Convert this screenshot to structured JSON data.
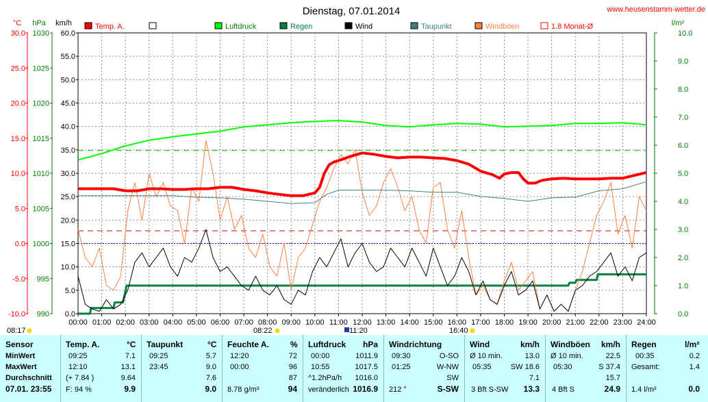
{
  "title": "Dienstag, 07.01.2014",
  "website": "www.heusenstamm-wetter.de",
  "units": {
    "temp": "°C",
    "pressure": "hPa",
    "wind": "km/h",
    "rain": "l/m²"
  },
  "legend": [
    {
      "label": "Temp. A.",
      "color": "#ff0000"
    },
    {
      "label": "",
      "color": "#ffffff"
    },
    {
      "label": "Luftdruck",
      "color": "#00ff00"
    },
    {
      "label": "Regen",
      "color": "#008040"
    },
    {
      "label": "Wind",
      "color": "#000000"
    },
    {
      "label": "Taupunkt",
      "color": "#408080"
    },
    {
      "label": "Windböen",
      "color": "#ff8040"
    },
    {
      "label": "1.8 Monat-Ø",
      "color": "#ff0000"
    }
  ],
  "markers": {
    "sunrise": "08:22",
    "sunset": "16:40",
    "noon": "11:20",
    "left_time": "08:17"
  },
  "chart_data": {
    "type": "line",
    "x_ticks": [
      "00:00",
      "01:00",
      "02:00",
      "03:00",
      "04:00",
      "05:00",
      "06:00",
      "07:00",
      "08:00",
      "09:00",
      "10:00",
      "11:00",
      "12:00",
      "13:00",
      "14:00",
      "15:00",
      "16:00",
      "17:00",
      "18:00",
      "19:00",
      "20:00",
      "21:00",
      "22:00",
      "23:00",
      "24:00"
    ],
    "axes": {
      "temp": {
        "label": "°C",
        "min": -10,
        "max": 30,
        "ticks": [
          "30.0",
          "25.0",
          "20.0",
          "15.0",
          "10.0",
          "5.0",
          "0.0",
          "-5.0",
          "-10.0"
        ]
      },
      "pressure": {
        "label": "hPa",
        "min": 990,
        "max": 1030,
        "ticks": [
          "1030",
          "1025",
          "1020",
          "1015",
          "1010",
          "1005",
          "1000",
          "995",
          "990"
        ]
      },
      "wind": {
        "label": "km/h",
        "min": 0,
        "max": 60,
        "ticks": [
          "60.0",
          "55.0",
          "50.0",
          "45.0",
          "40.0",
          "35.0",
          "30.0",
          "25.0",
          "20.0",
          "15.0",
          "10.0",
          "5.0",
          "0.0"
        ]
      },
      "rain": {
        "label": "l/m²",
        "min": 0,
        "max": 10,
        "ticks": [
          "10.0",
          "9.0",
          "8.0",
          "7.0",
          "6.0",
          "5.0",
          "4.0",
          "3.0",
          "2.0",
          "1.0",
          "0.0"
        ]
      }
    },
    "reference_lines": [
      {
        "name": "monthly-avg-temp",
        "axis": "temp",
        "value": 1.8,
        "color": "#cc0000"
      },
      {
        "name": "pressure-reference",
        "axis": "pressure",
        "value": 1013.25,
        "color": "#00cc00"
      },
      {
        "name": "zero-temp",
        "axis": "temp",
        "value": 0,
        "color": "#0000cc"
      }
    ],
    "series": [
      {
        "name": "Temp. A.",
        "axis": "temp",
        "color": "#ff0000",
        "width": 4,
        "x": [
          0,
          0.5,
          1,
          1.5,
          2,
          2.5,
          3,
          3.5,
          4,
          4.5,
          5,
          5.5,
          6,
          6.5,
          7,
          7.5,
          8,
          8.5,
          9,
          9.5,
          10,
          10.2,
          10.4,
          10.6,
          10.8,
          11,
          11.5,
          12,
          12.5,
          13,
          13.5,
          14,
          14.5,
          15,
          15.5,
          16,
          16.5,
          17,
          17.5,
          17.8,
          18,
          18.3,
          18.6,
          18.8,
          19,
          19.3,
          19.6,
          20,
          20.5,
          21,
          21.5,
          22,
          22.5,
          23,
          23.5,
          24
        ],
        "y": [
          7.8,
          7.8,
          7.8,
          7.8,
          7.5,
          7.5,
          7.8,
          7.8,
          7.7,
          7.7,
          7.8,
          7.8,
          8.0,
          8.0,
          7.7,
          7.5,
          7.2,
          7.0,
          6.8,
          6.8,
          7.2,
          8,
          10,
          11.2,
          11.6,
          11.8,
          12.4,
          12.9,
          12.7,
          12.4,
          12.2,
          12.3,
          12.3,
          12.2,
          12.1,
          11.8,
          11.3,
          10.3,
          9.8,
          9.3,
          9.9,
          10.1,
          10.1,
          9.2,
          8.6,
          8.6,
          9.0,
          9.2,
          9.3,
          9.2,
          9.2,
          9.2,
          9.3,
          9.3,
          9.7,
          10.1
        ]
      },
      {
        "name": "Taupunkt",
        "axis": "temp",
        "color": "#408080",
        "width": 1,
        "x": [
          0,
          1,
          2,
          3,
          4,
          5,
          6,
          7,
          8,
          9,
          10,
          10.5,
          11,
          12,
          13,
          14,
          15,
          16,
          17,
          18,
          19,
          20,
          21,
          22,
          23,
          24
        ],
        "y": [
          6.8,
          6.8,
          6.8,
          6.8,
          6.8,
          6.6,
          6.5,
          6.3,
          6.0,
          5.7,
          5.8,
          7,
          7.6,
          7.6,
          7.6,
          7.5,
          7.3,
          7.3,
          6.7,
          6.4,
          6.0,
          6.5,
          6.6,
          7.5,
          7.8,
          8.8
        ]
      },
      {
        "name": "Luftdruck",
        "axis": "pressure",
        "color": "#00ff00",
        "width": 2,
        "x": [
          0,
          1,
          2,
          3,
          4,
          5,
          6,
          7,
          8,
          9,
          10,
          11,
          12,
          13,
          14,
          15,
          16,
          17,
          18,
          19,
          20,
          21,
          22,
          23,
          24
        ],
        "y": [
          1011.9,
          1012.8,
          1013.9,
          1014.7,
          1015.2,
          1015.6,
          1016.0,
          1016.6,
          1016.9,
          1017.2,
          1017.4,
          1017.5,
          1017.3,
          1016.8,
          1016.6,
          1016.9,
          1017.1,
          1017.0,
          1016.6,
          1016.7,
          1016.8,
          1017.1,
          1017.1,
          1017.2,
          1016.9
        ]
      },
      {
        "name": "Wind",
        "axis": "wind",
        "color": "#000000",
        "width": 1,
        "x": [
          0,
          0.3,
          0.6,
          0.9,
          1.2,
          1.5,
          1.8,
          2.1,
          2.4,
          2.7,
          3,
          3.3,
          3.6,
          3.9,
          4.2,
          4.5,
          4.8,
          5.1,
          5.4,
          5.7,
          6,
          6.3,
          6.6,
          6.9,
          7.2,
          7.5,
          7.8,
          8.1,
          8.4,
          8.7,
          9,
          9.3,
          9.6,
          9.9,
          10.2,
          10.5,
          10.8,
          11.1,
          11.4,
          11.7,
          12,
          12.3,
          12.6,
          12.9,
          13.2,
          13.5,
          13.8,
          14.1,
          14.4,
          14.7,
          15,
          15.3,
          15.6,
          15.9,
          16.2,
          16.5,
          16.8,
          17.1,
          17.4,
          17.7,
          18,
          18.3,
          18.6,
          18.9,
          19.2,
          19.5,
          19.8,
          20.1,
          20.4,
          20.7,
          21,
          21.3,
          21.6,
          21.9,
          22.2,
          22.5,
          22.8,
          23.1,
          23.4,
          23.7,
          24
        ],
        "y": [
          8,
          2,
          1,
          0.5,
          3,
          1,
          2,
          5,
          11,
          13,
          10,
          12,
          14,
          10,
          8,
          12,
          11,
          14,
          18,
          12,
          9,
          10,
          8,
          6,
          5,
          8,
          5,
          4,
          6,
          3,
          2,
          5,
          4,
          9,
          12,
          10,
          13,
          16,
          10,
          13,
          15,
          11,
          9,
          10,
          14,
          12,
          10,
          14,
          11,
          8,
          14,
          10,
          6,
          8,
          12,
          9,
          4,
          7,
          3,
          2,
          6,
          9,
          4,
          5,
          7,
          1,
          4,
          0.5,
          2,
          0.5,
          5,
          6,
          8,
          9,
          11,
          13,
          8,
          10,
          7,
          12,
          13
        ]
      },
      {
        "name": "Windböen",
        "axis": "wind",
        "color": "#ff8040",
        "width": 1,
        "x": [
          0,
          0.3,
          0.6,
          0.9,
          1.2,
          1.5,
          1.8,
          2.1,
          2.4,
          2.7,
          3,
          3.3,
          3.6,
          3.9,
          4.2,
          4.5,
          4.8,
          5.1,
          5.4,
          5.7,
          6,
          6.3,
          6.6,
          6.9,
          7.2,
          7.5,
          7.8,
          8.1,
          8.4,
          8.7,
          9,
          9.3,
          9.6,
          9.9,
          10.2,
          10.5,
          10.8,
          11.1,
          11.4,
          11.7,
          12,
          12.3,
          12.6,
          12.9,
          13.2,
          13.5,
          13.8,
          14.1,
          14.4,
          14.7,
          15,
          15.3,
          15.6,
          15.9,
          16.2,
          16.5,
          16.8,
          17.1,
          17.4,
          17.7,
          18,
          18.3,
          18.6,
          18.9,
          19.2,
          19.5,
          19.8,
          20.1,
          20.4,
          20.7,
          21,
          21.3,
          21.6,
          21.9,
          22.2,
          22.5,
          22.8,
          23.1,
          23.4,
          23.7,
          24
        ],
        "y": [
          18,
          12,
          10,
          14,
          6,
          5,
          8,
          22,
          28,
          20,
          30,
          25,
          28,
          23,
          22,
          15,
          27,
          24,
          37,
          30,
          20,
          25,
          18,
          21,
          14,
          12,
          17,
          10,
          8,
          15,
          5,
          12,
          14,
          19,
          24,
          27,
          31,
          34,
          32,
          35,
          26,
          21,
          23,
          28,
          31,
          27,
          22,
          25,
          18,
          15,
          27,
          28,
          18,
          14,
          22,
          12,
          4,
          6,
          3,
          2,
          7,
          11,
          5,
          7,
          9,
          1,
          4,
          0.5,
          2,
          0.5,
          5,
          9,
          15,
          21,
          24,
          28,
          17,
          21,
          14,
          25,
          22
        ]
      },
      {
        "name": "Regen",
        "axis": "rain",
        "color": "#008040",
        "width": 3,
        "x": [
          0,
          0.5,
          0.55,
          1.5,
          1.55,
          1.9,
          1.95,
          2.0,
          2.05,
          3,
          10,
          20,
          20.7,
          20.75,
          21,
          21.05,
          21.9,
          21.95,
          24
        ],
        "y": [
          0,
          0,
          0.2,
          0.2,
          0.4,
          0.4,
          0.6,
          0.8,
          1,
          1,
          1,
          1,
          1,
          1.1,
          1.1,
          1.2,
          1.2,
          1.4,
          1.4
        ]
      }
    ]
  },
  "stats": {
    "row_labels": {
      "header": "Sensor",
      "min": "MinWert",
      "max": "MaxWert",
      "avg": "Durchschnitt",
      "date": "07.01. 23:55"
    },
    "temp": {
      "title": "Temp. A.",
      "unit": "°C",
      "min_time": "09:25",
      "min_val": "7.1",
      "max_time": "12:10",
      "max_val": "13.1",
      "avg_extra": "(+ 7.84 )",
      "avg_val": "9.64",
      "cur_label": "F: 94 %",
      "cur_val": "9.9"
    },
    "dew": {
      "title": "Taupunkt",
      "unit": "°C",
      "min_time": "09:25",
      "min_val": "5.7",
      "max_time": "23:45",
      "max_val": "9.0",
      "avg_val": "7.6",
      "cur_val": "9.0"
    },
    "hum": {
      "title": "Feuchte A.",
      "unit": "%",
      "min_time": "12:20",
      "min_val": "72",
      "max_time": "00:00",
      "max_val": "96",
      "avg_val": "87",
      "cur_label": "8.78 g/m³",
      "cur_val": "94"
    },
    "pres": {
      "title": "Luftdruck",
      "unit": "hPa",
      "min_time": "00:00",
      "min_val": "1011.9",
      "max_time": "10:55",
      "max_val": "1017.5",
      "avg_extra": "^1.2hPa/h",
      "avg_val": "1016.0",
      "cur_label": "veränderlich",
      "cur_val": "1016.9"
    },
    "dir": {
      "title": "Windrichtung",
      "min_time": "09:30",
      "min_val": "O-SO",
      "max_time": "01:25",
      "max_val": "W-NW",
      "avg_val": "SW",
      "cur_label": "212 °",
      "cur_val": "S-SW"
    },
    "wind": {
      "title": "Wind",
      "unit": "km/h",
      "min_time": "Ø 10 min.",
      "min_val": "13.0",
      "max_time": "05:35",
      "max_val": "SW 18.6",
      "avg_val": "7.1",
      "cur_label": "3 Bft S-SW",
      "cur_val": "13.3"
    },
    "gust": {
      "title": "Windböen",
      "unit": "km/h",
      "min_time": "Ø 10 min.",
      "min_val": "22.5",
      "max_time": "05:30",
      "max_val": "S 37.4",
      "avg_val": "15.7",
      "cur_label": "4 Bft S",
      "cur_val": "24.9"
    },
    "rain": {
      "title": "Regen",
      "unit": "l/m²",
      "min_time": "00:35",
      "min_val": "0.2",
      "max_time": "Gesamt:",
      "max_val": "1.4",
      "cur_label": "1.4 l/m²",
      "cur_val": "0.0"
    }
  }
}
